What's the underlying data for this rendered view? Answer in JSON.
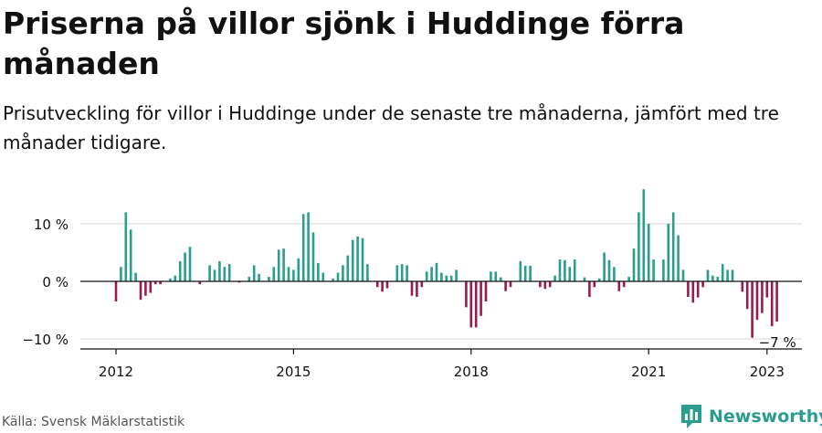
{
  "header": {
    "title": "Priserna på villor sjönk i Huddinge förra månaden",
    "subtitle": "Prisutveckling för villor i Huddinge under de senaste tre månaderna, jämfört med tre månader tidigare."
  },
  "footer": {
    "source": "Källa: Svensk Mäklarstatistik",
    "brand": "Newsworthy"
  },
  "colors": {
    "positive": "#2a9d8f",
    "negative": "#9b1b4f",
    "grid": "#dddddd",
    "axis": "#111111",
    "brand": "#2a9d8f"
  },
  "icons": {
    "brand_logo": "bar-chart-logo-icon"
  },
  "chart_data": {
    "type": "bar",
    "title": "",
    "xlabel": "",
    "ylabel": "",
    "start": "2012-01",
    "ylim": [
      -11,
      16
    ],
    "yticks": [
      -10,
      0,
      10
    ],
    "ytick_labels": [
      "−10 %",
      "0 %",
      "10 %"
    ],
    "xticks": [
      "2012",
      "2015",
      "2018",
      "2021",
      "2023"
    ],
    "last_label": "−7 %",
    "grid": true,
    "values": [
      -3.5,
      2.5,
      12,
      9,
      1.5,
      -3.2,
      -2.5,
      -2,
      -0.5,
      -0.5,
      0,
      0.5,
      1,
      3.5,
      5,
      6,
      0,
      -0.5,
      0,
      2.8,
      2,
      3.5,
      2.5,
      3,
      0,
      -0.2,
      0,
      0.8,
      2.8,
      1.3,
      0,
      0.8,
      2.5,
      5.5,
      5.7,
      2.5,
      2,
      4,
      11.7,
      12,
      8.5,
      3.2,
      1.5,
      0,
      0.5,
      1.5,
      2.8,
      4.5,
      7.2,
      7.8,
      7.5,
      3,
      0,
      -1,
      -1.8,
      -1.2,
      0,
      2.8,
      3,
      2.8,
      -2.5,
      -2.7,
      -1,
      1.7,
      2.5,
      3.2,
      1.5,
      1,
      1,
      2,
      0,
      -4.5,
      -8,
      -8,
      -6,
      -3.5,
      1.7,
      1.7,
      0.7,
      -1.7,
      -1,
      0,
      3.5,
      2.7,
      2.7,
      0,
      -1,
      -1.3,
      -1,
      1,
      3.8,
      3.7,
      2.5,
      3.8,
      0,
      0.7,
      -2.7,
      -1,
      0.5,
      5,
      3.7,
      2.5,
      -1.7,
      -1,
      0.8,
      5.7,
      12,
      16,
      10,
      3.8,
      0,
      3.8,
      10,
      12,
      8,
      2,
      -2.7,
      -3.7,
      -2.8,
      -1,
      2,
      1,
      0.8,
      3,
      2,
      2,
      0,
      -1.8,
      -4.8,
      -9.8,
      -6.7,
      -5.5,
      -2.8,
      -7.8,
      -7
    ]
  }
}
